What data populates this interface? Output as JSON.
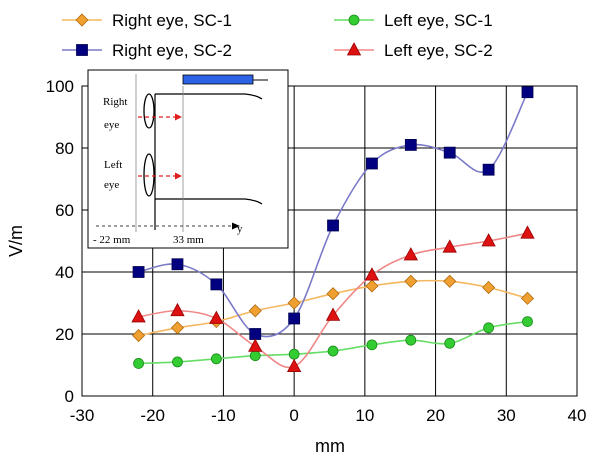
{
  "chart_data": {
    "type": "line",
    "xlabel": "mm",
    "ylabel": "V/m",
    "xlim": [
      -30,
      40
    ],
    "ylim": [
      0,
      100
    ],
    "xticks": [
      -30,
      -20,
      -10,
      0,
      10,
      20,
      30,
      40
    ],
    "yticks": [
      0,
      20,
      40,
      60,
      80,
      100
    ],
    "grid": true,
    "legend_position": "top",
    "series": [
      {
        "name": "Right eye, SC-1",
        "marker": "diamond",
        "color": "#f0a030",
        "x": [
          -22,
          -16.5,
          -11,
          -5.5,
          0,
          5.5,
          11,
          16.5,
          22,
          27.5,
          33
        ],
        "y": [
          19.5,
          22,
          24,
          27.5,
          30,
          33,
          35.5,
          37,
          37,
          35,
          31.5
        ]
      },
      {
        "name": "Left eye, SC-1",
        "marker": "circle",
        "color": "#33cc33",
        "x": [
          -22,
          -16.5,
          -11,
          -5.5,
          0,
          5.5,
          11,
          16.5,
          22,
          27.5,
          33
        ],
        "y": [
          10.5,
          11,
          12,
          13,
          13.5,
          14.5,
          16.5,
          18,
          17,
          22,
          24
        ]
      },
      {
        "name": "Right eye, SC-2",
        "marker": "square",
        "color": "#000080",
        "x": [
          -22,
          -16.5,
          -11,
          -5.5,
          0,
          5.5,
          11,
          16.5,
          22,
          27.5,
          33
        ],
        "y": [
          40,
          42.5,
          36,
          20,
          25,
          55,
          75,
          81,
          78.5,
          73,
          98
        ]
      },
      {
        "name": "Left eye, SC-2",
        "marker": "triangle",
        "color": "#dd1111",
        "x": [
          -22,
          -16.5,
          -11,
          -5.5,
          0,
          5.5,
          11,
          16.5,
          22,
          27.5,
          33
        ],
        "y": [
          25.5,
          27.5,
          25,
          16,
          9.5,
          26,
          39,
          45.5,
          48,
          50,
          52.5
        ]
      }
    ],
    "inset": {
      "labels": {
        "right_eye_line1": "Right",
        "right_eye_line2": "eye",
        "left_eye_line1": "Left",
        "left_eye_line2": "eye",
        "axis_y": "y",
        "pos_left": "- 22 mm",
        "pos_right": "33 mm"
      }
    }
  }
}
